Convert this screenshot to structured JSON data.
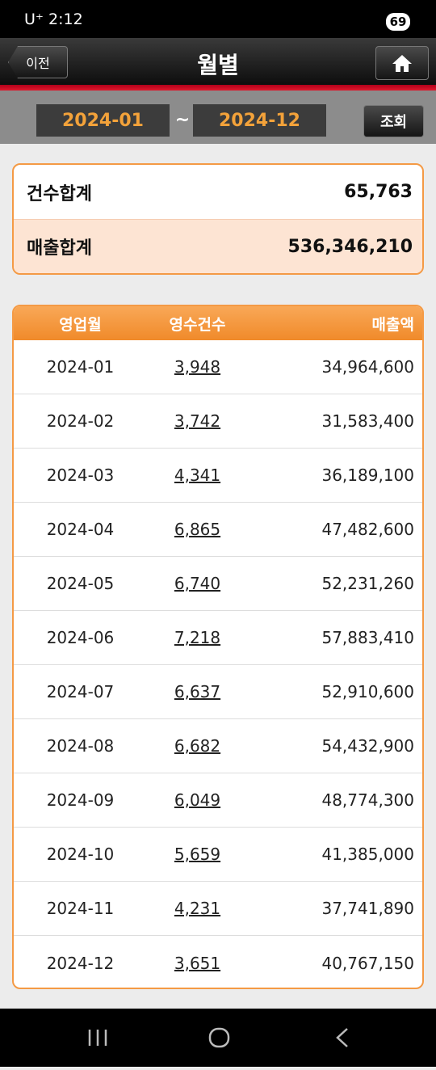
{
  "status_bar": {
    "carrier": "U⁺",
    "time": "2:12",
    "battery": "69"
  },
  "header": {
    "back": "이전",
    "title": "월별"
  },
  "search": {
    "from": "2024-01",
    "separator": "~",
    "to": "2024-12",
    "button": "조회"
  },
  "summary": {
    "rows": [
      [
        "건수합계",
        "65,763"
      ],
      [
        "매출합계",
        "536,346,210"
      ]
    ]
  },
  "table": {
    "columns": [
      "영업월",
      "영수건수",
      "매출액"
    ],
    "rows": [
      [
        "2024-01",
        "3,948",
        "34,964,600"
      ],
      [
        "2024-02",
        "3,742",
        "31,583,400"
      ],
      [
        "2024-03",
        "4,341",
        "36,189,100"
      ],
      [
        "2024-04",
        "6,865",
        "47,482,600"
      ],
      [
        "2024-05",
        "6,740",
        "52,231,260"
      ],
      [
        "2024-06",
        "7,218",
        "57,883,410"
      ],
      [
        "2024-07",
        "6,637",
        "52,910,600"
      ],
      [
        "2024-08",
        "6,682",
        "54,432,900"
      ],
      [
        "2024-09",
        "6,049",
        "48,774,300"
      ],
      [
        "2024-10",
        "5,659",
        "41,385,000"
      ],
      [
        "2024-11",
        "4,231",
        "37,741,890"
      ],
      [
        "2024-12",
        "3,651",
        "40,767,150"
      ]
    ]
  }
}
